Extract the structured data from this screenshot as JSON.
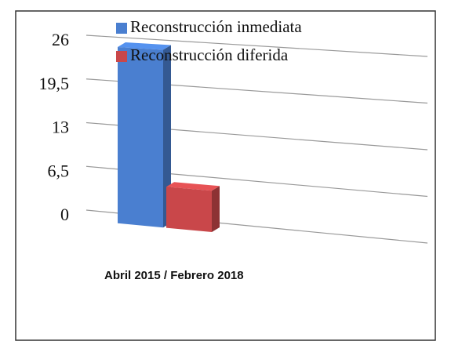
{
  "chart_data": {
    "type": "bar3d",
    "categories": [
      "Abril 2015 / Febrero 2018"
    ],
    "series": [
      {
        "name": "Reconstrucción inmediata",
        "color": "#4a7fd0",
        "values": [
          26
        ]
      },
      {
        "name": "Reconstrucción diferida",
        "color": "#c9474a",
        "values": [
          6
        ]
      }
    ],
    "ylim": [
      0,
      26
    ],
    "yticks": [
      0,
      {
        "value": 6.5,
        "label": "6,5"
      },
      13,
      {
        "value": 19.5,
        "label": "19,5"
      },
      26
    ],
    "grid": true
  }
}
